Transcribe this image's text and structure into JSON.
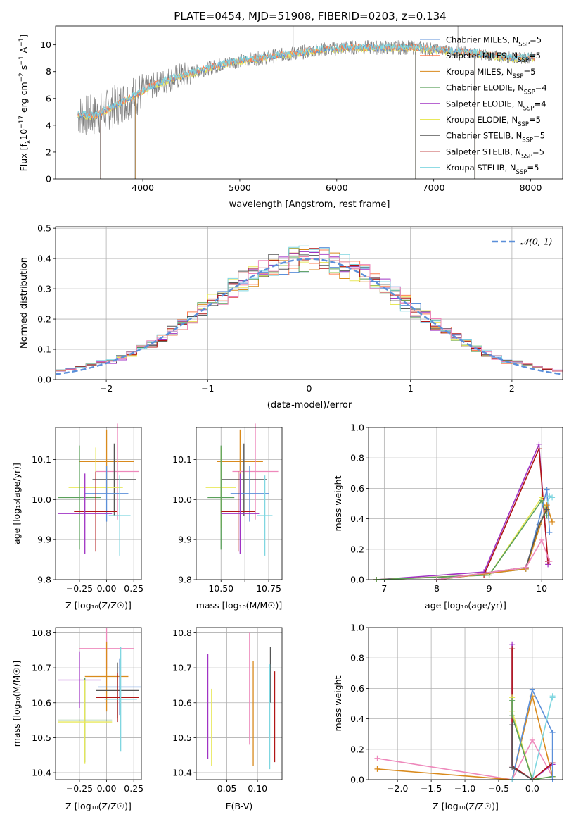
{
  "title": "PLATE=0454, MJD=51908, FIBERID=0203, z=0.134",
  "colors": {
    "chabrier_miles": "#5b8fd9",
    "salpeter_miles": "#ff7f50",
    "kroupa_miles": "#d98a1c",
    "chabrier_elodie": "#5aa05a",
    "salpeter_elodie": "#a033c4",
    "kroupa_elodie": "#e8e85a",
    "chabrier_stelib": "#555555",
    "salpeter_stelib": "#b01515",
    "kroupa_stelib": "#7fd6e0",
    "extra_pink": "#ee88bb",
    "spectrum_data": "#808080",
    "gaussian": "#5b8fd9",
    "grid": "#b0b0b0"
  },
  "legend_spectrum": [
    {
      "text": "Chabrier MILES, N",
      "sub": "SSP",
      "post": "=5",
      "color_key": "chabrier_miles"
    },
    {
      "text": "Salpeter MILES, N",
      "sub": "SSP",
      "post": "=5",
      "color_key": "salpeter_miles"
    },
    {
      "text": "Kroupa MILES, N",
      "sub": "SSP",
      "post": "=5",
      "color_key": "kroupa_miles"
    },
    {
      "text": "Chabrier ELODIE, N",
      "sub": "SSP",
      "post": "=4",
      "color_key": "chabrier_elodie"
    },
    {
      "text": "Salpeter ELODIE, N",
      "sub": "SSP",
      "post": "=4",
      "color_key": "salpeter_elodie"
    },
    {
      "text": "Kroupa ELODIE, N",
      "sub": "SSP",
      "post": "=5",
      "color_key": "kroupa_elodie"
    },
    {
      "text": "Chabrier STELIB, N",
      "sub": "SSP",
      "post": "=5",
      "color_key": "chabrier_stelib"
    },
    {
      "text": "Salpeter STELIB, N",
      "sub": "SSP",
      "post": "=5",
      "color_key": "salpeter_stelib"
    },
    {
      "text": "Kroupa STELIB, N",
      "sub": "SSP",
      "post": "=5",
      "color_key": "kroupa_stelib"
    }
  ],
  "legend_hist": "𝒩(0, 1)",
  "chart_data": [
    {
      "id": "spectrum",
      "type": "line",
      "xlabel": "wavelength [Angstrom, rest frame]",
      "ylabel": "Flux [f_λ 10⁻¹⁷ erg cm⁻² s⁻¹ A⁻¹]",
      "xlim": [
        3100,
        8330
      ],
      "ylim": [
        0,
        11.4
      ],
      "xticks": [
        4000,
        5000,
        6000,
        7000,
        8000
      ],
      "yticks": [
        0,
        2,
        4,
        6,
        8,
        10
      ],
      "grid": false,
      "continuum": [
        [
          3330,
          4.8
        ],
        [
          3500,
          4.7
        ],
        [
          3650,
          5.2
        ],
        [
          3800,
          5.8
        ],
        [
          3950,
          6.3
        ],
        [
          4050,
          6.8
        ],
        [
          4300,
          7.5
        ],
        [
          4600,
          8.1
        ],
        [
          4900,
          8.7
        ],
        [
          5200,
          9.0
        ],
        [
          5500,
          9.3
        ],
        [
          5800,
          9.6
        ],
        [
          6100,
          9.8
        ],
        [
          6400,
          9.8
        ],
        [
          6800,
          9.8
        ],
        [
          7100,
          9.6
        ],
        [
          7400,
          9.4
        ],
        [
          7700,
          9.1
        ],
        [
          7900,
          9.0
        ],
        [
          8050,
          9.1
        ]
      ],
      "spikes": [
        [
          3560,
          0
        ],
        [
          3920,
          0
        ],
        [
          6810,
          0
        ],
        [
          7420,
          0
        ],
        [
          4300,
          11.4
        ],
        [
          5550,
          11.4
        ],
        [
          7250,
          11.4
        ]
      ]
    },
    {
      "id": "residual_hist",
      "type": "line",
      "xlabel": "(data-model)/error",
      "ylabel": "Normed distribution",
      "xlim": [
        -2.5,
        2.5
      ],
      "ylim": [
        0,
        0.505
      ],
      "xticks": [
        -2,
        -1,
        0,
        1,
        2
      ],
      "yticks": [
        0.0,
        0.1,
        0.2,
        0.3,
        0.4,
        0.5
      ],
      "grid": true,
      "bin_width": 0.1,
      "gaussian": {
        "mean": 0,
        "sigma": 1
      }
    },
    {
      "id": "Z_age",
      "type": "scatter",
      "xlabel": "Z [log₁₀(Z/Z☉)]",
      "ylabel": "age  [log₁₀(age/yr)]",
      "xlim": [
        -0.47,
        0.32
      ],
      "ylim": [
        9.8,
        10.18
      ],
      "xticks": [
        -0.25,
        0.0,
        0.25
      ],
      "yticks": [
        9.8,
        9.9,
        10.0,
        10.1
      ],
      "grid": true,
      "points": [
        {
          "x": 0.0,
          "y": 10.095,
          "xerr": 0.25,
          "yerr": 0.08,
          "c": "kroupa_miles"
        },
        {
          "x": 0.1,
          "y": 10.07,
          "xerr": 0.2,
          "yerr": 0.12,
          "c": "extra_pink"
        },
        {
          "x": 0.07,
          "y": 10.05,
          "xerr": 0.2,
          "yerr": 0.09,
          "c": "chabrier_stelib"
        },
        {
          "x": -0.1,
          "y": 10.03,
          "xerr": 0.25,
          "yerr": 0.1,
          "c": "kroupa_elodie"
        },
        {
          "x": 0.0,
          "y": 10.015,
          "xerr": 0.2,
          "yerr": 0.07,
          "c": "chabrier_miles"
        },
        {
          "x": -0.25,
          "y": 10.005,
          "xerr": 0.2,
          "yerr": 0.13,
          "c": "chabrier_elodie"
        },
        {
          "x": -0.1,
          "y": 9.97,
          "xerr": 0.2,
          "yerr": 0.1,
          "c": "salpeter_stelib"
        },
        {
          "x": -0.2,
          "y": 9.965,
          "xerr": 0.25,
          "yerr": 0.1,
          "c": "salpeter_elodie"
        },
        {
          "x": 0.12,
          "y": 9.96,
          "xerr": 0.1,
          "yerr": 0.1,
          "c": "kroupa_stelib"
        }
      ]
    },
    {
      "id": "mass_age",
      "type": "scatter",
      "xlabel": "mass [log₁₀(M/M☉)]",
      "ylabel": "",
      "xlim": [
        10.37,
        10.82
      ],
      "ylim": [
        9.8,
        10.18
      ],
      "xticks": [
        10.5,
        10.625,
        10.75
      ],
      "xticklabels": [
        "10.50",
        "",
        "10.75"
      ],
      "yticks": [
        9.8,
        9.9,
        10.0,
        10.1
      ],
      "grid": true,
      "points": [
        {
          "x": 10.6,
          "y": 10.095,
          "xerr": 0.12,
          "yerr": 0.08,
          "c": "kroupa_miles"
        },
        {
          "x": 10.68,
          "y": 10.07,
          "xerr": 0.12,
          "yerr": 0.12,
          "c": "extra_pink"
        },
        {
          "x": 10.62,
          "y": 10.05,
          "xerr": 0.12,
          "yerr": 0.09,
          "c": "chabrier_stelib"
        },
        {
          "x": 10.5,
          "y": 10.03,
          "xerr": 0.08,
          "yerr": 0.1,
          "c": "kroupa_elodie"
        },
        {
          "x": 10.65,
          "y": 10.015,
          "xerr": 0.1,
          "yerr": 0.07,
          "c": "chabrier_miles"
        },
        {
          "x": 10.5,
          "y": 10.005,
          "xerr": 0.07,
          "yerr": 0.13,
          "c": "chabrier_elodie"
        },
        {
          "x": 10.59,
          "y": 9.97,
          "xerr": 0.09,
          "yerr": 0.1,
          "c": "salpeter_stelib"
        },
        {
          "x": 10.6,
          "y": 9.965,
          "xerr": 0.1,
          "yerr": 0.1,
          "c": "salpeter_elodie"
        },
        {
          "x": 10.73,
          "y": 9.96,
          "xerr": 0.04,
          "yerr": 0.1,
          "c": "kroupa_stelib"
        }
      ]
    },
    {
      "id": "age_weight",
      "type": "line",
      "xlabel": "age  [log₁₀(age/yr)]",
      "ylabel": "mass weight",
      "xlim": [
        6.7,
        10.4
      ],
      "ylim": [
        0,
        1.0
      ],
      "xticks": [
        7,
        8,
        9,
        10
      ],
      "yticks": [
        0.0,
        0.2,
        0.4,
        0.6,
        0.8,
        1.0
      ],
      "grid": true,
      "series": [
        {
          "c": "salpeter_elodie",
          "x": [
            6.85,
            8.9,
            9.95,
            10.12
          ],
          "y": [
            0.0,
            0.05,
            0.89,
            0.1
          ]
        },
        {
          "c": "salpeter_stelib",
          "x": [
            6.85,
            8.9,
            9.95,
            10.12
          ],
          "y": [
            0.0,
            0.03,
            0.86,
            0.12
          ]
        },
        {
          "c": "kroupa_elodie",
          "x": [
            6.85,
            9.0,
            10.0,
            10.1
          ],
          "y": [
            0.0,
            0.03,
            0.54,
            0.45
          ]
        },
        {
          "c": "chabrier_elodie",
          "x": [
            6.85,
            9.0,
            10.0,
            10.1
          ],
          "y": [
            0.0,
            0.03,
            0.52,
            0.42
          ]
        },
        {
          "c": "chabrier_miles",
          "x": [
            8.0,
            9.7,
            10.1,
            10.15
          ],
          "y": [
            0.0,
            0.07,
            0.59,
            0.31
          ]
        },
        {
          "c": "kroupa_stelib",
          "x": [
            8.0,
            9.7,
            10.15,
            10.2
          ],
          "y": [
            0.0,
            0.07,
            0.55,
            0.54
          ]
        },
        {
          "c": "kroupa_miles",
          "x": [
            8.0,
            9.7,
            10.1,
            10.2
          ],
          "y": [
            0.0,
            0.07,
            0.49,
            0.38
          ]
        },
        {
          "c": "chabrier_stelib",
          "x": [
            8.0,
            9.7,
            9.95,
            10.1
          ],
          "y": [
            0.0,
            0.08,
            0.36,
            0.46
          ]
        },
        {
          "c": "extra_pink",
          "x": [
            8.0,
            9.7,
            10.0,
            10.15
          ],
          "y": [
            0.0,
            0.08,
            0.26,
            0.12
          ]
        }
      ]
    },
    {
      "id": "Z_mass",
      "type": "scatter",
      "xlabel": "Z [log₁₀(Z/Z☉)]",
      "ylabel": "mass [log₁₀(M/M☉)]",
      "xlim": [
        -0.47,
        0.32
      ],
      "ylim": [
        10.38,
        10.815
      ],
      "xticks": [
        -0.25,
        0.0,
        0.25
      ],
      "yticks": [
        10.4,
        10.5,
        10.6,
        10.7,
        10.8
      ],
      "grid": true,
      "points": [
        {
          "x": 0.0,
          "y": 10.755,
          "xerr": 0.25,
          "yerr": 0.06,
          "c": "extra_pink"
        },
        {
          "x": -0.25,
          "y": 10.665,
          "xerr": 0.2,
          "yerr": 0.08,
          "c": "salpeter_elodie"
        },
        {
          "x": 0.0,
          "y": 10.675,
          "xerr": 0.2,
          "yerr": 0.1,
          "c": "kroupa_miles"
        },
        {
          "x": 0.12,
          "y": 10.645,
          "xerr": 0.2,
          "yerr": 0.08,
          "c": "chabrier_miles"
        },
        {
          "x": 0.1,
          "y": 10.635,
          "xerr": 0.2,
          "yerr": 0.08,
          "c": "chabrier_stelib"
        },
        {
          "x": 0.1,
          "y": 10.615,
          "xerr": 0.2,
          "yerr": 0.07,
          "c": "salpeter_stelib"
        },
        {
          "x": 0.13,
          "y": 10.61,
          "xerr": 0.15,
          "yerr": 0.15,
          "c": "kroupa_stelib"
        },
        {
          "x": -0.2,
          "y": 10.55,
          "xerr": 0.25,
          "yerr": 0.12,
          "c": "chabrier_elodie"
        },
        {
          "x": -0.2,
          "y": 10.545,
          "xerr": 0.25,
          "yerr": 0.12,
          "c": "kroupa_elodie"
        }
      ]
    },
    {
      "id": "ebv_mass",
      "type": "scatter",
      "xlabel": "E(B-V)",
      "ylabel": "",
      "xlim": [
        0.0,
        0.14
      ],
      "ylim": [
        10.38,
        10.815
      ],
      "xticks": [
        0.05,
        0.1
      ],
      "xticklabels": [
        "0.05",
        "0.10"
      ],
      "yticks": [
        10.4,
        10.5,
        10.6,
        10.7,
        10.8
      ],
      "grid": true,
      "points": [
        {
          "x": 0.019,
          "y": 10.59,
          "xerr": 0,
          "yerr": 0.15,
          "c": "salpeter_elodie"
        },
        {
          "x": 0.025,
          "y": 10.53,
          "xerr": 0,
          "yerr": 0.11,
          "c": "kroupa_elodie"
        },
        {
          "x": 0.087,
          "y": 10.64,
          "xerr": 0,
          "yerr": 0.16,
          "c": "extra_pink"
        },
        {
          "x": 0.093,
          "y": 10.57,
          "xerr": 0,
          "yerr": 0.15,
          "c": "kroupa_miles"
        },
        {
          "x": 0.121,
          "y": 10.68,
          "xerr": 0,
          "yerr": 0.08,
          "c": "chabrier_stelib"
        },
        {
          "x": 0.12,
          "y": 10.56,
          "xerr": 0,
          "yerr": 0.15,
          "c": "kroupa_stelib"
        },
        {
          "x": 0.128,
          "y": 10.56,
          "xerr": 0,
          "yerr": 0.13,
          "c": "salpeter_stelib"
        }
      ]
    },
    {
      "id": "Z_weight",
      "type": "line",
      "xlabel": "Z [log₁₀(Z/Z☉)]",
      "ylabel": "mass weight",
      "xlim": [
        -2.43,
        0.45
      ],
      "ylim": [
        0,
        1.0
      ],
      "xticks": [
        -2.0,
        -1.5,
        -1.0,
        -0.5,
        0.0
      ],
      "xticklabels": [
        "−2.0",
        "−1.5",
        "−1.0",
        "−0.5",
        "0.0"
      ],
      "yticks": [
        0.0,
        0.2,
        0.4,
        0.6,
        0.8,
        1.0
      ],
      "grid": true,
      "series": [
        {
          "c": "extra_pink",
          "x": [
            -2.3,
            -0.3,
            0.0,
            0.3
          ],
          "y": [
            0.14,
            0.0,
            0.26,
            0.02
          ]
        },
        {
          "c": "kroupa_miles",
          "x": [
            -2.3,
            -0.3,
            0.0,
            0.3
          ],
          "y": [
            0.07,
            0.0,
            0.55,
            0.02
          ]
        },
        {
          "c": "salpeter_elodie",
          "x": [
            -0.3,
            -0.3,
            0.0,
            0.3
          ],
          "y": [
            0.89,
            0.09,
            0.0,
            0.1
          ]
        },
        {
          "c": "salpeter_stelib",
          "x": [
            -0.3,
            -0.3,
            0.0,
            0.3
          ],
          "y": [
            0.86,
            0.09,
            0.0,
            0.11
          ]
        },
        {
          "c": "kroupa_elodie",
          "x": [
            -0.3,
            -0.3,
            0.0,
            0.3
          ],
          "y": [
            0.54,
            0.45,
            0.0,
            0.02
          ]
        },
        {
          "c": "chabrier_elodie",
          "x": [
            -0.3,
            -0.3,
            0.0,
            0.3
          ],
          "y": [
            0.52,
            0.42,
            0.0,
            0.02
          ]
        },
        {
          "c": "chabrier_miles",
          "x": [
            -0.3,
            0.0,
            0.3,
            0.3
          ],
          "y": [
            0.0,
            0.59,
            0.31,
            0.0
          ]
        },
        {
          "c": "kroupa_stelib",
          "x": [
            -0.3,
            0.0,
            0.3,
            0.3
          ],
          "y": [
            0.0,
            0.0,
            0.55,
            0.54
          ]
        },
        {
          "c": "chabrier_stelib",
          "x": [
            -0.3,
            -0.3,
            0.0
          ],
          "y": [
            0.36,
            0.08,
            0.0
          ]
        }
      ]
    }
  ]
}
